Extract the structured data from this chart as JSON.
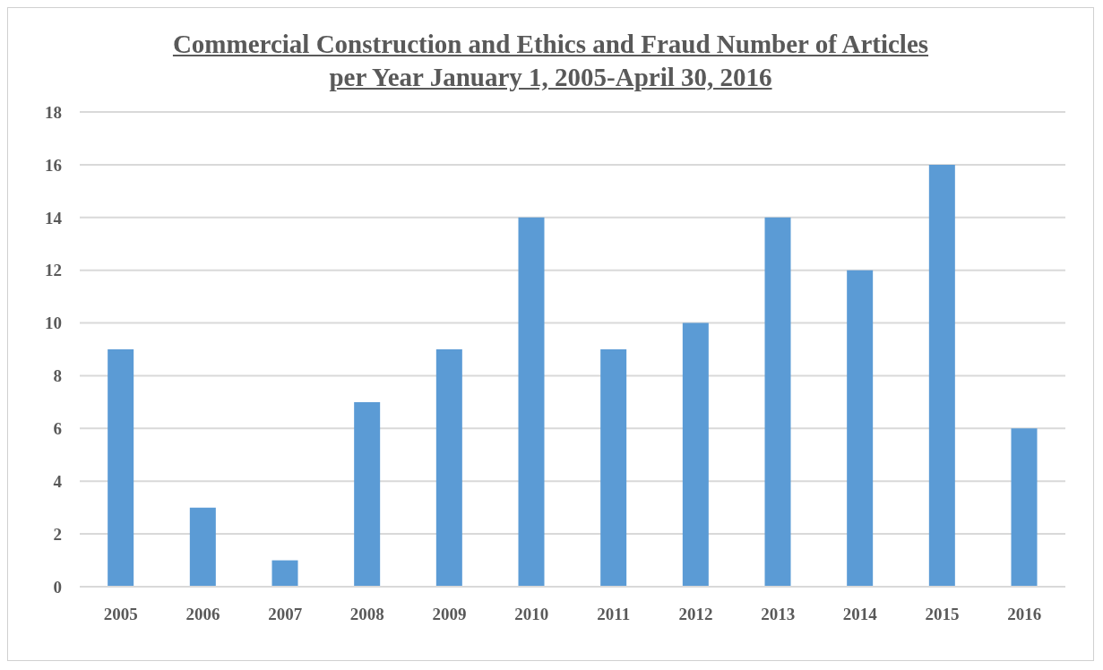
{
  "chart_data": {
    "type": "bar",
    "title": "Commercial Construction and Ethics and Fraud Number of Articles per Year January 1, 2005-April 30, 2016",
    "categories": [
      "2005",
      "2006",
      "2007",
      "2008",
      "2009",
      "2010",
      "2011",
      "2012",
      "2013",
      "2014",
      "2015",
      "2016"
    ],
    "values": [
      9,
      3,
      1,
      7,
      9,
      14,
      9,
      10,
      14,
      12,
      16,
      6
    ],
    "color": "#5b9bd5",
    "ylim": [
      0,
      18
    ],
    "yticks": [
      0,
      2,
      4,
      6,
      8,
      10,
      12,
      14,
      16,
      18
    ],
    "grid": "y"
  }
}
